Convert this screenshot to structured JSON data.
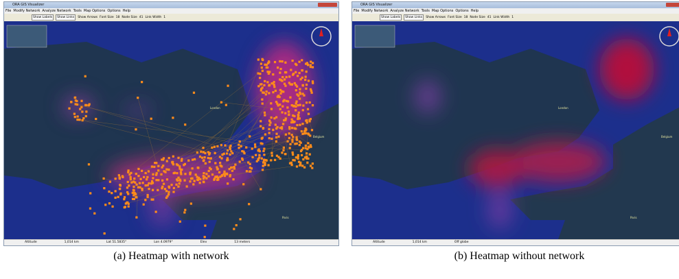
{
  "panels": [
    {
      "window_title": "ORA GIS Visualizer",
      "menu": [
        "File",
        "Modify Network",
        "Analyze Network",
        "Tools",
        "Map Options",
        "Options",
        "Help"
      ],
      "toolbar": [
        "Show Labels",
        "Show Links",
        "Show Arrows",
        "Font Size",
        "18",
        "Node Size",
        "41",
        "Link Width",
        "1"
      ],
      "places": [
        "London",
        "Belgium",
        "Paris"
      ],
      "status": [
        "Altitude",
        "1,014 km",
        "Lat 51.5835°",
        "Lon 4.0979°",
        "Elev",
        "13 meters"
      ],
      "caption": "(a) Heatmap with network"
    },
    {
      "window_title": "ORA GIS Visualizer",
      "menu": [
        "File",
        "Modify Network",
        "Analyze Network",
        "Tools",
        "Map Options",
        "Options",
        "Help"
      ],
      "toolbar": [
        "Show Labels",
        "Show Links",
        "Show Arrows",
        "Font Size",
        "18",
        "Node Size",
        "41",
        "Link Width",
        "1"
      ],
      "places": [
        "London",
        "Belgium",
        "Paris"
      ],
      "status": [
        "Altitude",
        "1,014 km",
        "Off globe"
      ],
      "caption": "(b) Heatmap without network"
    }
  ]
}
